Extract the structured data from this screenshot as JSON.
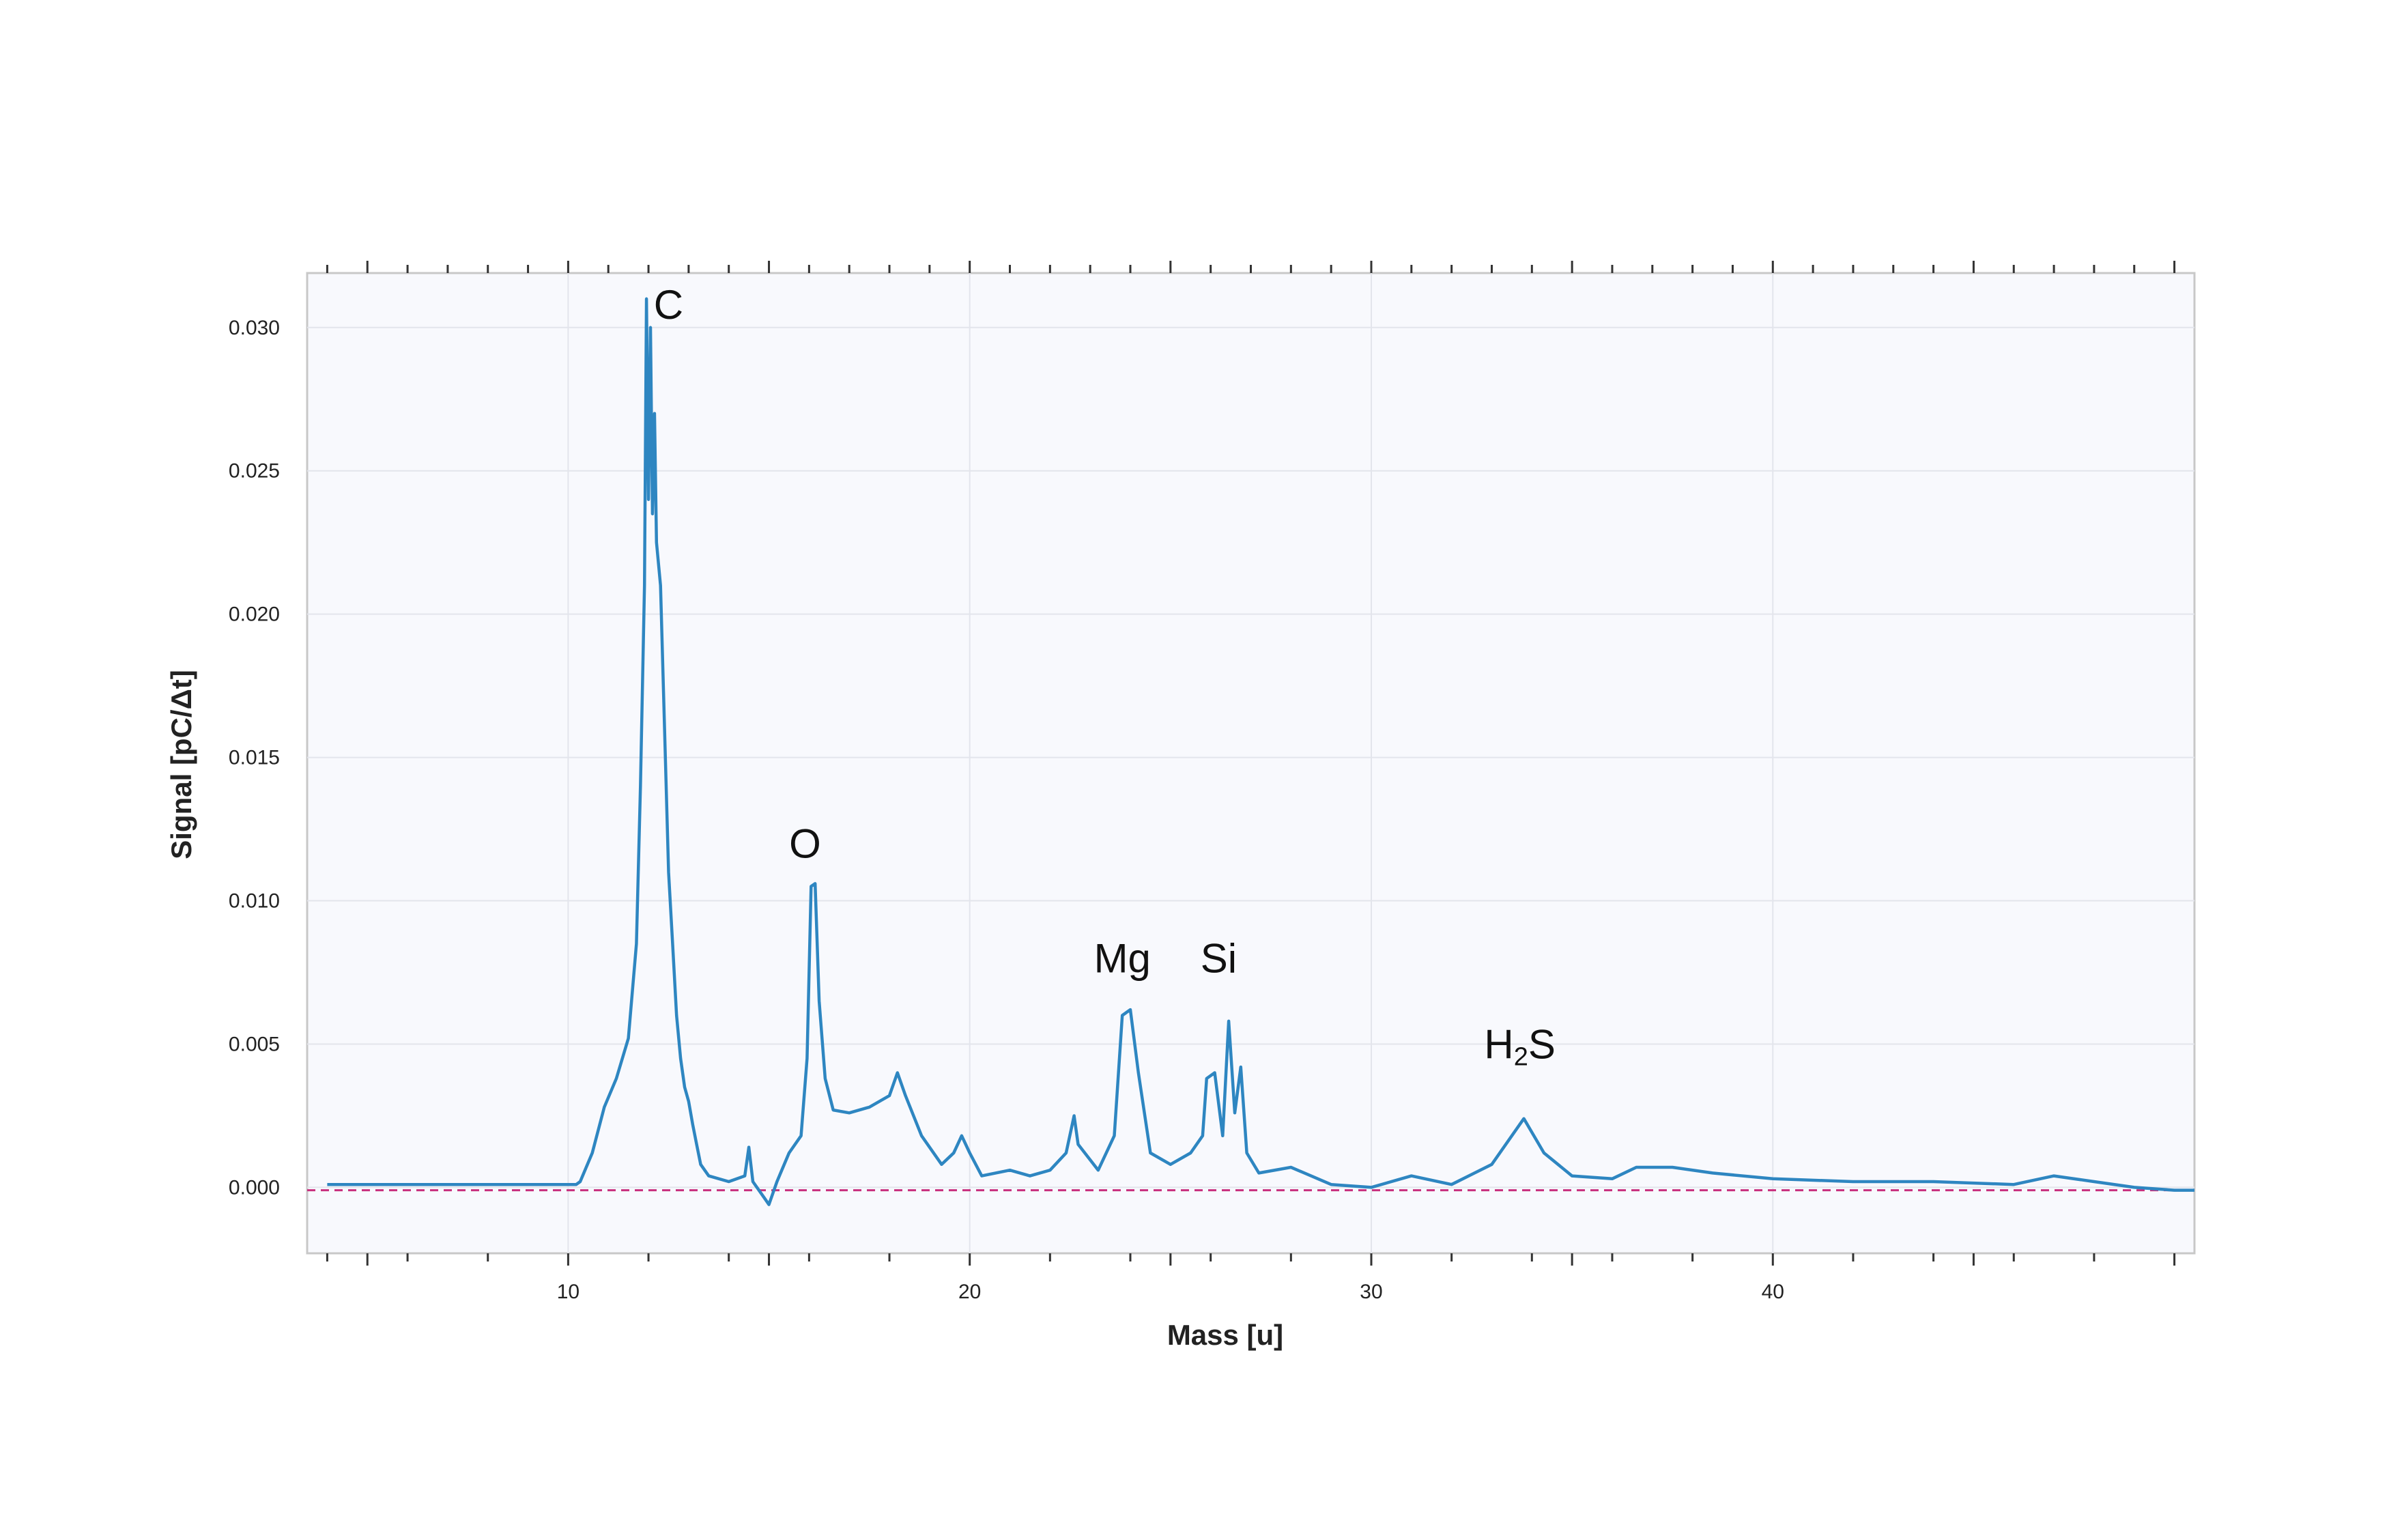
{
  "chart_data": {
    "type": "line",
    "title": "",
    "xlabel": "Mass  [u]",
    "ylabel": "Signal [pC/Δt]",
    "xlim": [
      3.5,
      50.5
    ],
    "ylim": [
      -0.0023,
      0.0319
    ],
    "x_ticks": [
      10,
      20,
      30,
      40
    ],
    "x_tick_labels": [
      "10",
      "20",
      "30",
      "40"
    ],
    "y_ticks": [
      0.0,
      0.005,
      0.01,
      0.015,
      0.02,
      0.025,
      0.03
    ],
    "y_tick_labels": [
      "0.000",
      "0.005",
      "0.010",
      "0.015",
      "0.020",
      "0.025",
      "0.030"
    ],
    "grid": true,
    "reference_line": {
      "y": -0.0001,
      "style": "dashed",
      "color": "#c8307e"
    },
    "series": [
      {
        "color": "#2e86c1",
        "points": [
          [
            4.0,
            0.0001
          ],
          [
            6.0,
            0.0001
          ],
          [
            8.0,
            0.0001
          ],
          [
            10.2,
            0.0001
          ],
          [
            10.3,
            0.0002
          ],
          [
            10.6,
            0.0012
          ],
          [
            10.9,
            0.0028
          ],
          [
            11.2,
            0.0038
          ],
          [
            11.5,
            0.0052
          ],
          [
            11.7,
            0.0085
          ],
          [
            11.8,
            0.014
          ],
          [
            11.9,
            0.021
          ],
          [
            11.95,
            0.031
          ],
          [
            12.0,
            0.024
          ],
          [
            12.05,
            0.03
          ],
          [
            12.1,
            0.0235
          ],
          [
            12.15,
            0.027
          ],
          [
            12.2,
            0.0225
          ],
          [
            12.3,
            0.021
          ],
          [
            12.4,
            0.016
          ],
          [
            12.5,
            0.011
          ],
          [
            12.6,
            0.0085
          ],
          [
            12.7,
            0.006
          ],
          [
            12.8,
            0.0045
          ],
          [
            12.9,
            0.0035
          ],
          [
            13.0,
            0.003
          ],
          [
            13.1,
            0.0022
          ],
          [
            13.2,
            0.0015
          ],
          [
            13.3,
            0.0008
          ],
          [
            13.5,
            0.0004
          ],
          [
            14.0,
            0.0002
          ],
          [
            14.4,
            0.0004
          ],
          [
            14.5,
            0.0014
          ],
          [
            14.6,
            0.0002
          ],
          [
            14.9,
            -0.0004
          ],
          [
            15.0,
            -0.0006
          ],
          [
            15.2,
            0.0002
          ],
          [
            15.5,
            0.0012
          ],
          [
            15.8,
            0.0018
          ],
          [
            15.95,
            0.0045
          ],
          [
            16.05,
            0.0105
          ],
          [
            16.15,
            0.0106
          ],
          [
            16.25,
            0.0065
          ],
          [
            16.4,
            0.0038
          ],
          [
            16.6,
            0.0027
          ],
          [
            17.0,
            0.0026
          ],
          [
            17.5,
            0.0028
          ],
          [
            18.0,
            0.0032
          ],
          [
            18.2,
            0.004
          ],
          [
            18.4,
            0.0032
          ],
          [
            18.8,
            0.0018
          ],
          [
            19.3,
            0.0008
          ],
          [
            19.6,
            0.0012
          ],
          [
            19.8,
            0.0018
          ],
          [
            20.0,
            0.0012
          ],
          [
            20.3,
            0.0004
          ],
          [
            21.0,
            0.0006
          ],
          [
            21.5,
            0.0004
          ],
          [
            22.0,
            0.0006
          ],
          [
            22.4,
            0.0012
          ],
          [
            22.6,
            0.0025
          ],
          [
            22.7,
            0.0015
          ],
          [
            23.2,
            0.0006
          ],
          [
            23.6,
            0.0018
          ],
          [
            23.8,
            0.006
          ],
          [
            24.0,
            0.0062
          ],
          [
            24.2,
            0.004
          ],
          [
            24.5,
            0.0012
          ],
          [
            25.0,
            0.0008
          ],
          [
            25.5,
            0.0012
          ],
          [
            25.8,
            0.0018
          ],
          [
            25.9,
            0.0038
          ],
          [
            26.1,
            0.004
          ],
          [
            26.3,
            0.0018
          ],
          [
            26.45,
            0.0058
          ],
          [
            26.6,
            0.0026
          ],
          [
            26.75,
            0.0042
          ],
          [
            26.9,
            0.0012
          ],
          [
            27.2,
            0.0005
          ],
          [
            28.0,
            0.0007
          ],
          [
            29.0,
            0.0001
          ],
          [
            30.0,
            0.0
          ],
          [
            31.0,
            0.0004
          ],
          [
            32.0,
            0.0001
          ],
          [
            33.0,
            0.0008
          ],
          [
            33.5,
            0.0018
          ],
          [
            33.8,
            0.0024
          ],
          [
            34.3,
            0.0012
          ],
          [
            35.0,
            0.0004
          ],
          [
            36.0,
            0.0003
          ],
          [
            36.6,
            0.0007
          ],
          [
            37.5,
            0.0007
          ],
          [
            38.5,
            0.0005
          ],
          [
            40.0,
            0.0003
          ],
          [
            42.0,
            0.0002
          ],
          [
            44.0,
            0.0002
          ],
          [
            46.0,
            0.0001
          ],
          [
            47.0,
            0.0004
          ],
          [
            48.0,
            0.0002
          ],
          [
            49.0,
            0.0
          ],
          [
            50.0,
            -0.0001
          ],
          [
            50.5,
            -0.0001
          ]
        ]
      }
    ],
    "annotations": [
      {
        "text": "C",
        "x": 12.5,
        "y": 0.0303
      },
      {
        "text": "O",
        "x": 15.9,
        "y": 0.0115
      },
      {
        "text": "Mg",
        "x": 23.8,
        "y": 0.0075
      },
      {
        "text": "Si",
        "x": 26.2,
        "y": 0.0075
      },
      {
        "text": "H",
        "sub": "2",
        "suffix": "S",
        "x": 33.7,
        "y": 0.0045
      }
    ]
  }
}
